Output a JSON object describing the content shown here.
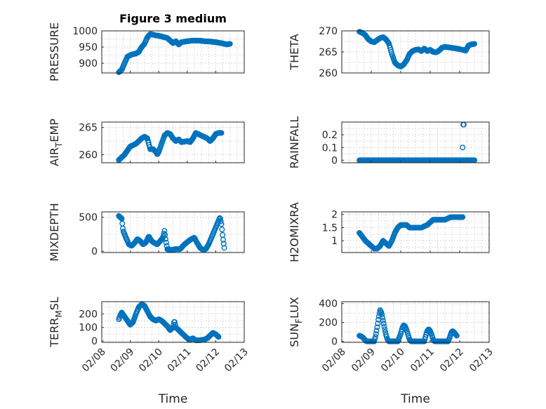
{
  "figure_title": "Figure 3 medium",
  "time_axis": {
    "label": "Time",
    "tick_labels": [
      "02/08",
      "02/09",
      "02/10",
      "02/11",
      "02/12",
      "02/13"
    ],
    "range_days": [
      0,
      5
    ]
  },
  "marker_color": "#0072bd",
  "chart_data": [
    {
      "type": "scatter",
      "title": "Figure 3 medium",
      "ylabel": "PRESSURE",
      "ylim": [
        870,
        1000
      ],
      "yticks": [
        900,
        950,
        1000
      ],
      "ytick_labels": [
        "900",
        "950",
        "1000"
      ],
      "key": [
        [
          0.6,
          872
        ],
        [
          0.7,
          880
        ],
        [
          0.8,
          900
        ],
        [
          0.9,
          920
        ],
        [
          1.0,
          925
        ],
        [
          1.1,
          928
        ],
        [
          1.2,
          930
        ],
        [
          1.3,
          935
        ],
        [
          1.4,
          950
        ],
        [
          1.5,
          960
        ],
        [
          1.6,
          980
        ],
        [
          1.7,
          990
        ],
        [
          1.8,
          988
        ],
        [
          1.9,
          986
        ],
        [
          2.0,
          985
        ],
        [
          2.2,
          980
        ],
        [
          2.3,
          978
        ],
        [
          2.4,
          970
        ],
        [
          2.5,
          962
        ],
        [
          2.6,
          968
        ],
        [
          2.7,
          958
        ],
        [
          2.8,
          965
        ],
        [
          3.0,
          968
        ],
        [
          3.2,
          970
        ],
        [
          3.4,
          970
        ],
        [
          3.6,
          968
        ],
        [
          3.8,
          967
        ],
        [
          4.0,
          965
        ],
        [
          4.2,
          962
        ],
        [
          4.3,
          960
        ],
        [
          4.4,
          958
        ],
        [
          4.5,
          960
        ]
      ]
    },
    {
      "type": "scatter",
      "ylabel": "THETA",
      "ylim": [
        260,
        270
      ],
      "yticks": [
        260,
        265,
        270
      ],
      "ytick_labels": [
        "260",
        "265",
        "270"
      ],
      "key": [
        [
          0.6,
          269.8
        ],
        [
          0.7,
          269.5
        ],
        [
          0.8,
          269.0
        ],
        [
          0.9,
          268.0
        ],
        [
          1.0,
          267.5
        ],
        [
          1.1,
          267.3
        ],
        [
          1.2,
          267.8
        ],
        [
          1.3,
          268.3
        ],
        [
          1.4,
          268.5
        ],
        [
          1.5,
          268.0
        ],
        [
          1.6,
          267.0
        ],
        [
          1.7,
          264.5
        ],
        [
          1.8,
          262.5
        ],
        [
          1.9,
          261.8
        ],
        [
          2.0,
          261.5
        ],
        [
          2.1,
          262.0
        ],
        [
          2.2,
          263.0
        ],
        [
          2.3,
          264.5
        ],
        [
          2.4,
          265.2
        ],
        [
          2.5,
          265.5
        ],
        [
          2.6,
          265.6
        ],
        [
          2.7,
          265.2
        ],
        [
          2.8,
          265.8
        ],
        [
          2.9,
          265.2
        ],
        [
          3.0,
          265.5
        ],
        [
          3.1,
          265.0
        ],
        [
          3.2,
          264.9
        ],
        [
          3.3,
          265.3
        ],
        [
          3.4,
          266.0
        ],
        [
          3.5,
          266.2
        ],
        [
          3.7,
          266.0
        ],
        [
          3.9,
          265.8
        ],
        [
          4.1,
          265.5
        ],
        [
          4.2,
          265.3
        ],
        [
          4.3,
          266.5
        ],
        [
          4.4,
          266.8
        ],
        [
          4.5,
          266.9
        ]
      ]
    },
    {
      "type": "scatter",
      "ylabel": "AIR",
      "ylabel_sub": "T",
      "ylabel_rest": "EMP",
      "ylim": [
        258.5,
        266
      ],
      "yticks": [
        260,
        265
      ],
      "ytick_labels": [
        "260",
        "265"
      ],
      "key": [
        [
          0.6,
          259
        ],
        [
          0.8,
          260
        ],
        [
          1.0,
          261.5
        ],
        [
          1.2,
          262
        ],
        [
          1.3,
          262.5
        ],
        [
          1.4,
          263
        ],
        [
          1.5,
          263.3
        ],
        [
          1.6,
          263
        ],
        [
          1.65,
          262
        ],
        [
          1.7,
          261
        ],
        [
          1.8,
          261
        ],
        [
          1.9,
          260.5
        ],
        [
          1.95,
          260
        ],
        [
          2.0,
          260.5
        ],
        [
          2.1,
          262
        ],
        [
          2.2,
          263.5
        ],
        [
          2.3,
          264
        ],
        [
          2.4,
          263.8
        ],
        [
          2.5,
          263
        ],
        [
          2.6,
          262.5
        ],
        [
          2.7,
          262.8
        ],
        [
          2.8,
          262.3
        ],
        [
          3.0,
          262.5
        ],
        [
          3.1,
          262.3
        ],
        [
          3.2,
          263
        ],
        [
          3.3,
          264
        ],
        [
          3.5,
          263.5
        ],
        [
          3.7,
          263
        ],
        [
          3.8,
          262.5
        ],
        [
          3.9,
          263
        ],
        [
          4.0,
          263.8
        ],
        [
          4.1,
          264
        ],
        [
          4.2,
          264
        ]
      ]
    },
    {
      "type": "scatter",
      "ylabel": "RAINFALL",
      "ylim": [
        -0.02,
        0.3
      ],
      "yticks": [
        0,
        0.1,
        0.2
      ],
      "ytick_labels": [
        "0",
        "0.1",
        "0.2"
      ],
      "key": [
        [
          0.6,
          0
        ],
        [
          4.5,
          0
        ]
      ],
      "extra_points": [
        [
          4.1,
          0.1
        ],
        [
          4.12,
          0.28
        ],
        [
          4.14,
          0.28
        ]
      ]
    },
    {
      "type": "scatter",
      "ylabel": "MIXDEPTH",
      "ylim": [
        -20,
        580
      ],
      "yticks": [
        0,
        500
      ],
      "ytick_labels": [
        "0",
        "500"
      ],
      "key": [
        [
          0.6,
          520
        ],
        [
          0.65,
          500
        ],
        [
          0.7,
          480
        ],
        [
          0.75,
          300
        ],
        [
          0.85,
          200
        ],
        [
          0.95,
          100
        ],
        [
          1.05,
          80
        ],
        [
          1.15,
          120
        ],
        [
          1.25,
          180
        ],
        [
          1.35,
          150
        ],
        [
          1.45,
          100
        ],
        [
          1.55,
          130
        ],
        [
          1.65,
          220
        ],
        [
          1.75,
          150
        ],
        [
          1.85,
          120
        ],
        [
          1.95,
          100
        ],
        [
          2.05,
          150
        ],
        [
          2.15,
          200
        ],
        [
          2.2,
          300
        ],
        [
          2.25,
          150
        ],
        [
          2.3,
          30
        ],
        [
          2.45,
          20
        ],
        [
          2.6,
          30
        ],
        [
          2.75,
          30
        ],
        [
          2.9,
          100
        ],
        [
          3.05,
          150
        ],
        [
          3.15,
          180
        ],
        [
          3.25,
          200
        ],
        [
          3.35,
          120
        ],
        [
          3.45,
          50
        ],
        [
          3.55,
          20
        ],
        [
          3.65,
          30
        ],
        [
          3.75,
          100
        ],
        [
          3.85,
          200
        ],
        [
          3.95,
          300
        ],
        [
          4.05,
          400
        ],
        [
          4.15,
          500
        ],
        [
          4.2,
          400
        ],
        [
          4.25,
          200
        ],
        [
          4.3,
          50
        ]
      ]
    },
    {
      "type": "scatter",
      "ylabel": "H2OMIXRA",
      "ylim": [
        0.55,
        2.1
      ],
      "yticks": [
        1,
        1.5,
        2
      ],
      "ytick_labels": [
        "1",
        "1.5",
        "2"
      ],
      "key": [
        [
          0.6,
          1.3
        ],
        [
          0.8,
          1.0
        ],
        [
          1.0,
          0.8
        ],
        [
          1.1,
          0.7
        ],
        [
          1.2,
          0.7
        ],
        [
          1.3,
          0.8
        ],
        [
          1.4,
          1.0
        ],
        [
          1.5,
          0.9
        ],
        [
          1.6,
          0.8
        ],
        [
          1.7,
          1.0
        ],
        [
          1.8,
          1.3
        ],
        [
          1.9,
          1.5
        ],
        [
          2.0,
          1.6
        ],
        [
          2.2,
          1.6
        ],
        [
          2.3,
          1.5
        ],
        [
          2.5,
          1.5
        ],
        [
          2.7,
          1.5
        ],
        [
          2.9,
          1.6
        ],
        [
          3.0,
          1.7
        ],
        [
          3.1,
          1.8
        ],
        [
          3.3,
          1.8
        ],
        [
          3.5,
          1.8
        ],
        [
          3.7,
          1.9
        ],
        [
          3.9,
          1.9
        ],
        [
          4.1,
          1.9
        ]
      ]
    },
    {
      "type": "scatter",
      "ylabel": "TERR",
      "ylabel_sub": "M",
      "ylabel_rest": "SL",
      "ylim": [
        -10,
        290
      ],
      "yticks": [
        0,
        100,
        200
      ],
      "ytick_labels": [
        "0",
        "100",
        "200"
      ],
      "key": [
        [
          0.6,
          160
        ],
        [
          0.65,
          190
        ],
        [
          0.7,
          210
        ],
        [
          0.8,
          180
        ],
        [
          0.9,
          150
        ],
        [
          1.0,
          120
        ],
        [
          1.1,
          140
        ],
        [
          1.2,
          200
        ],
        [
          1.3,
          250
        ],
        [
          1.4,
          270
        ],
        [
          1.5,
          260
        ],
        [
          1.6,
          220
        ],
        [
          1.7,
          180
        ],
        [
          1.8,
          160
        ],
        [
          1.9,
          150
        ],
        [
          2.0,
          160
        ],
        [
          2.1,
          150
        ],
        [
          2.2,
          130
        ],
        [
          2.3,
          110
        ],
        [
          2.4,
          80
        ],
        [
          2.5,
          100
        ],
        [
          2.55,
          150
        ],
        [
          2.6,
          100
        ],
        [
          2.7,
          80
        ],
        [
          2.8,
          60
        ],
        [
          2.9,
          40
        ],
        [
          3.0,
          20
        ],
        [
          3.1,
          10
        ],
        [
          3.2,
          20
        ],
        [
          3.3,
          5
        ],
        [
          3.4,
          5
        ],
        [
          3.6,
          10
        ],
        [
          3.7,
          20
        ],
        [
          3.8,
          40
        ],
        [
          3.9,
          60
        ],
        [
          4.0,
          50
        ],
        [
          4.1,
          30
        ]
      ]
    },
    {
      "type": "scatter",
      "ylabel": "SUN",
      "ylabel_sub": "F",
      "ylabel_rest": "LUX",
      "ylim": [
        -10,
        420
      ],
      "yticks": [
        0,
        200,
        400
      ],
      "ytick_labels": [
        "0",
        "200",
        "400"
      ],
      "key": [
        [
          0.6,
          60
        ],
        [
          0.65,
          55
        ],
        [
          0.7,
          45
        ],
        [
          0.75,
          30
        ],
        [
          0.8,
          10
        ],
        [
          0.85,
          0
        ],
        [
          1.0,
          0
        ],
        [
          1.1,
          0
        ],
        [
          1.15,
          60
        ],
        [
          1.2,
          150
        ],
        [
          1.25,
          250
        ],
        [
          1.3,
          330
        ],
        [
          1.35,
          300
        ],
        [
          1.4,
          220
        ],
        [
          1.45,
          140
        ],
        [
          1.5,
          70
        ],
        [
          1.55,
          20
        ],
        [
          1.6,
          0
        ],
        [
          1.8,
          0
        ],
        [
          1.9,
          0
        ],
        [
          2.0,
          80
        ],
        [
          2.05,
          140
        ],
        [
          2.1,
          170
        ],
        [
          2.15,
          160
        ],
        [
          2.2,
          120
        ],
        [
          2.25,
          70
        ],
        [
          2.3,
          20
        ],
        [
          2.35,
          0
        ],
        [
          2.5,
          0
        ],
        [
          2.7,
          0
        ],
        [
          2.8,
          0
        ],
        [
          2.85,
          60
        ],
        [
          2.9,
          110
        ],
        [
          2.95,
          130
        ],
        [
          3.0,
          110
        ],
        [
          3.05,
          70
        ],
        [
          3.1,
          20
        ],
        [
          3.15,
          0
        ],
        [
          3.3,
          0
        ],
        [
          3.5,
          0
        ],
        [
          3.6,
          0
        ],
        [
          3.65,
          30
        ],
        [
          3.7,
          80
        ],
        [
          3.75,
          110
        ],
        [
          3.8,
          100
        ],
        [
          3.85,
          80
        ],
        [
          3.9,
          60
        ]
      ]
    }
  ]
}
